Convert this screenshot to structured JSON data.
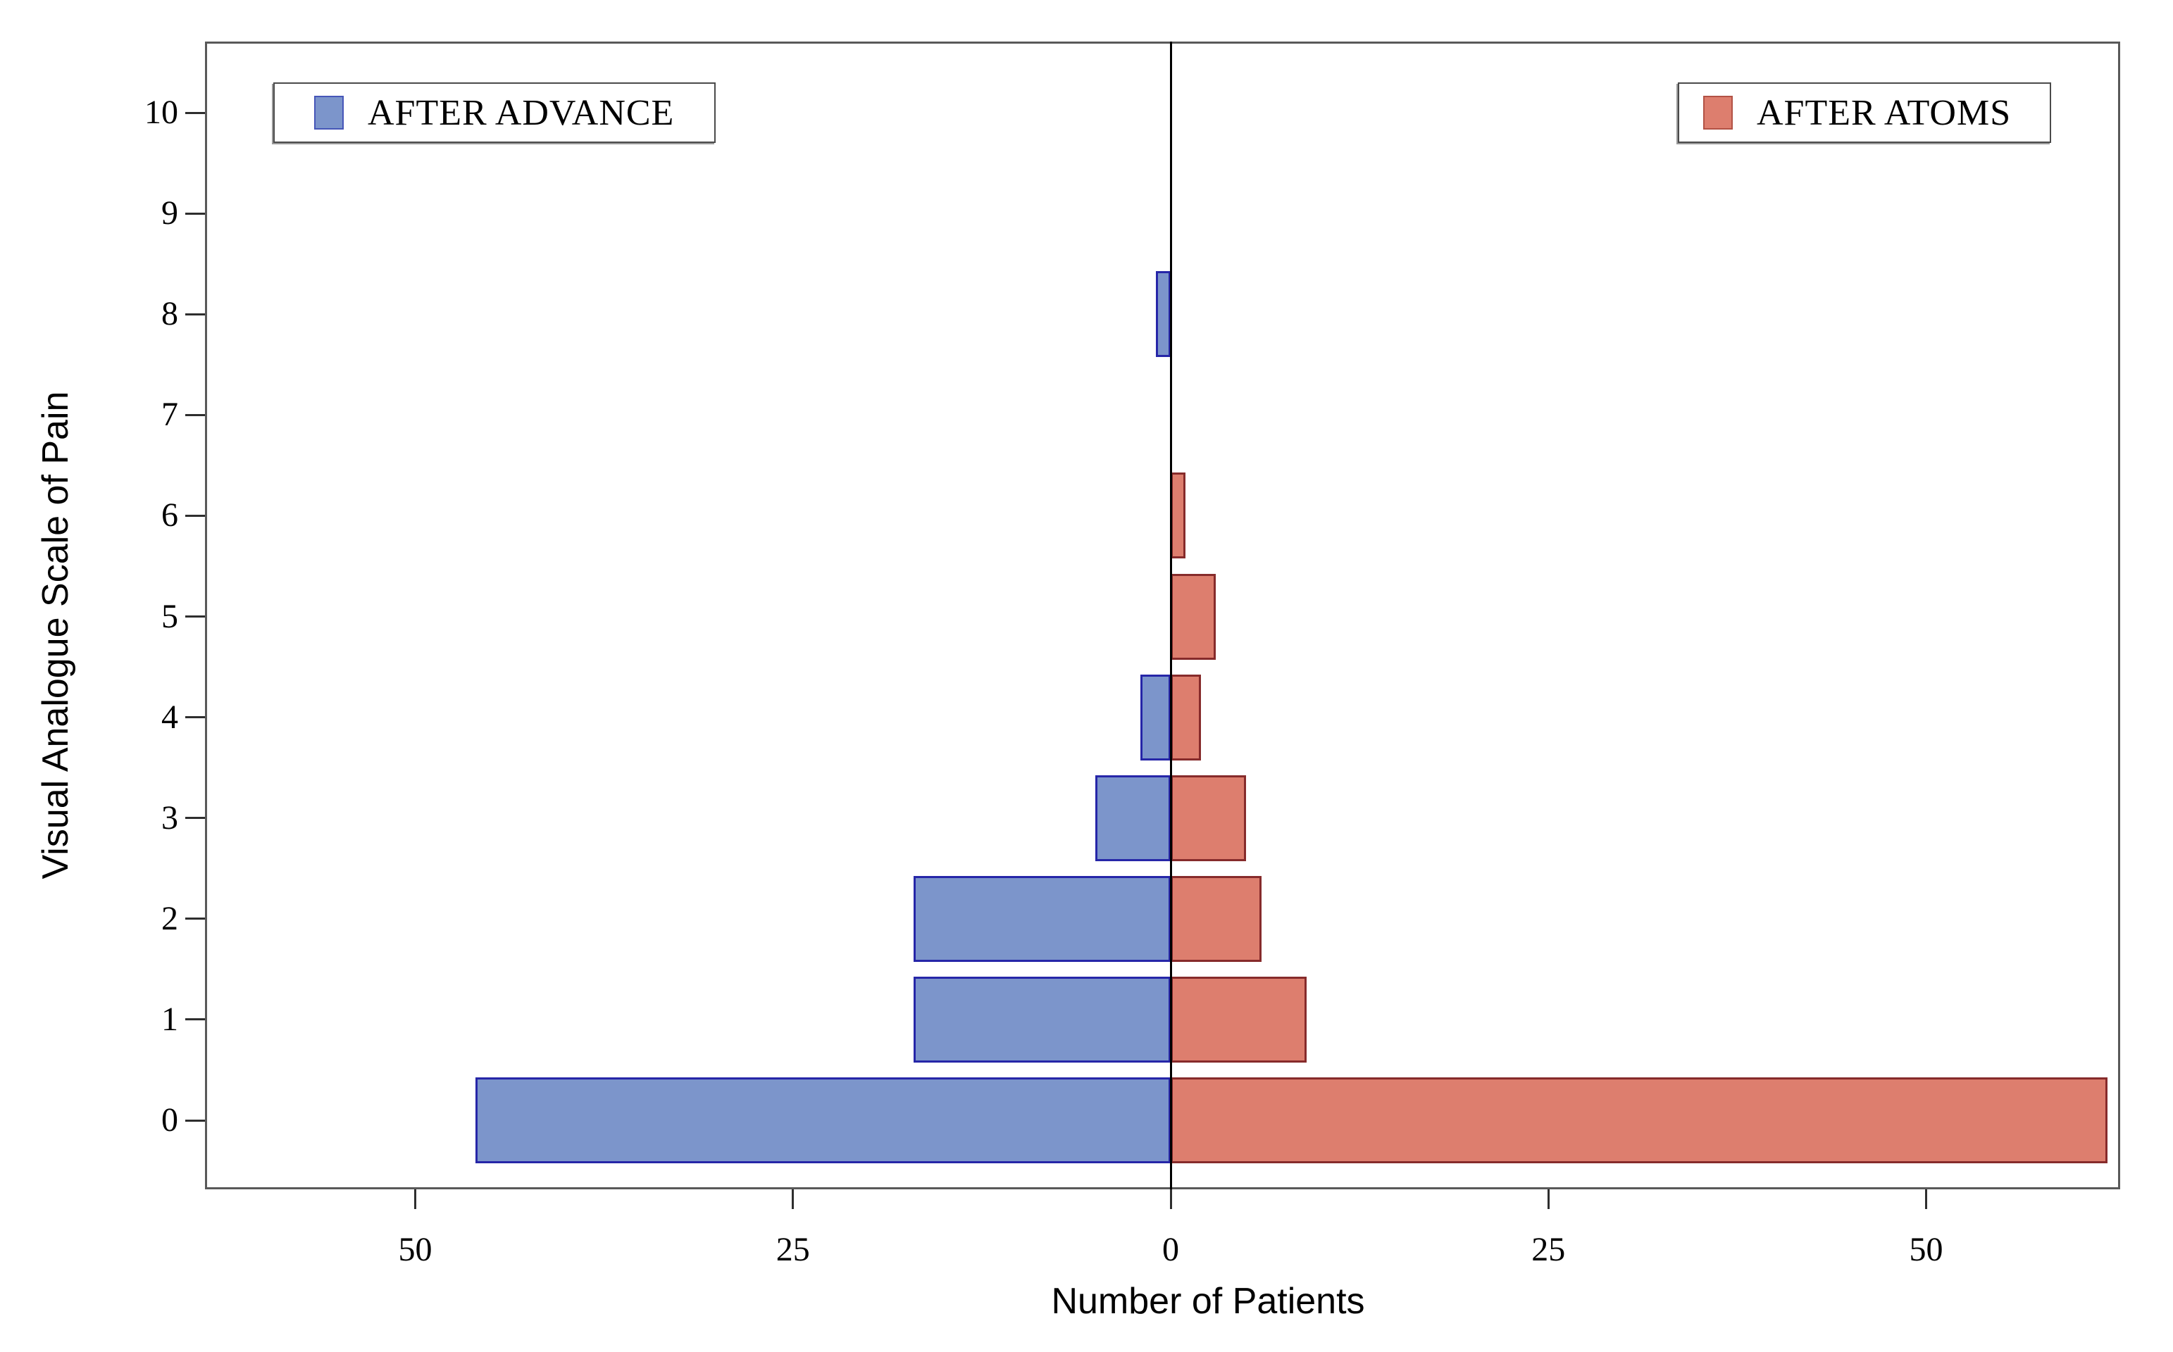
{
  "chart_data": {
    "type": "bar",
    "variant": "diverging-horizontal-pyramid",
    "title": "",
    "xlabel": "Number of Patients",
    "ylabel": "Visual Analogue Scale of Pain",
    "categories": [
      0,
      1,
      2,
      3,
      4,
      5,
      6,
      7,
      8,
      9,
      10
    ],
    "series": [
      {
        "name": "AFTER ADVANCE",
        "side": "left",
        "color": "#7C95CB",
        "border_color": "#2626A8",
        "values": [
          46,
          17,
          17,
          5,
          2,
          0,
          0,
          0,
          1,
          0,
          0
        ]
      },
      {
        "name": "AFTER ATOMS",
        "side": "right",
        "color": "#DD7E6E",
        "border_color": "#862B2B",
        "values": [
          62,
          9,
          6,
          5,
          2,
          3,
          1,
          0,
          0,
          0,
          0
        ]
      }
    ],
    "x_axis": {
      "tick_labels": [
        "50",
        "25",
        "0",
        "25",
        "50"
      ],
      "tick_values": [
        -50,
        -25,
        0,
        25,
        50
      ],
      "range_abs": [
        0,
        63
      ],
      "zero_line": true
    },
    "y_axis": {
      "tick_labels": [
        "0",
        "1",
        "2",
        "3",
        "4",
        "5",
        "6",
        "7",
        "8",
        "9",
        "10"
      ],
      "range": [
        0,
        10
      ]
    },
    "legend": {
      "position": "top-left-and-top-right",
      "entries": [
        "AFTER ADVANCE",
        "AFTER ATOMS"
      ]
    },
    "grid": false,
    "background": "#ffffff",
    "axis_color": "#000000",
    "frame_color": "#595959"
  }
}
